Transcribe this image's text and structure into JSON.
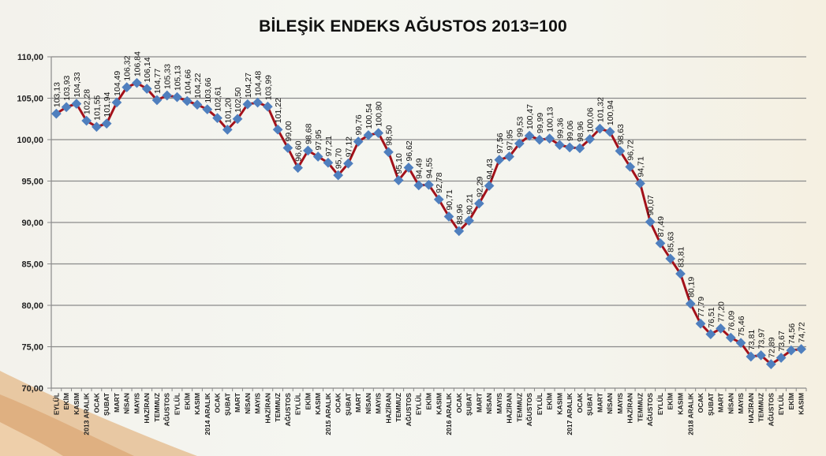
{
  "title": "BİLEŞİK ENDEKS AĞUSTOS 2013=100",
  "colors": {
    "line": "#a3111a",
    "marker": "#4f7fbe",
    "grid": "#8a8a8a",
    "axis": "#8a8a8a",
    "text": "#111111"
  },
  "chart_data": {
    "type": "line",
    "title": "BİLEŞİK ENDEKS AĞUSTOS 2013=100",
    "xlabel": "",
    "ylabel": "",
    "ylim": [
      70,
      110
    ],
    "yticks": [
      "70,00",
      "75,00",
      "80,00",
      "85,00",
      "90,00",
      "95,00",
      "100,00",
      "105,00",
      "110,00"
    ],
    "grid": true,
    "legend": null,
    "categories": [
      "EYLÜL",
      "EKİM",
      "KASIM",
      "2013 ARALIK",
      "OCAK",
      "ŞUBAT",
      "MART",
      "NİSAN",
      "MAYIS",
      "HAZİRAN",
      "TEMMUZ",
      "AĞUSTOS",
      "EYLÜL",
      "EKİM",
      "KASIM",
      "2014 ARALIK",
      "OCAK",
      "ŞUBAT",
      "MART",
      "NİSAN",
      "MAYIS",
      "HAZİRAN",
      "TEMMUZ",
      "AĞUSTOS",
      "EYLÜL",
      "EKİM",
      "KASIM",
      "2015 ARALIK",
      "OCAK",
      "ŞUBAT",
      "MART",
      "NİSAN",
      "MAYIS",
      "HAZİRAN",
      "TEMMUZ",
      "AĞUSTOS",
      "EYLÜL",
      "EKİM",
      "KASIM",
      "2016 ARALIK",
      "OCAK",
      "ŞUBAT",
      "MART",
      "NİSAN",
      "MAYIS",
      "HAZİRAN",
      "TEMMUZ",
      "AĞUSTOS",
      "EYLÜL",
      "EKİM",
      "KASIM",
      "2017 ARALIK",
      "OCAK",
      "ŞUBAT",
      "MART",
      "NİSAN",
      "MAYIS",
      "HAZİRAN",
      "TEMMUZ",
      "AĞUSTOS",
      "EYLÜL",
      "EKİM",
      "KASIM",
      "2018 ARALIK",
      "OCAK",
      "ŞUBAT",
      "MART",
      "NİSAN",
      "MAYIS",
      "HAZİRAN",
      "TEMMUZ",
      "AĞUSTOS",
      "EYLÜL",
      "EKİM",
      "KASIM"
    ],
    "series": [
      {
        "name": "Bileşik Endeks",
        "values": [
          103.13,
          103.93,
          104.33,
          102.28,
          101.55,
          101.94,
          104.49,
          106.32,
          106.84,
          106.14,
          104.77,
          105.33,
          105.13,
          104.66,
          104.22,
          103.66,
          102.61,
          101.2,
          102.5,
          104.27,
          104.48,
          103.99,
          101.22,
          99.0,
          96.6,
          98.68,
          97.95,
          97.21,
          95.7,
          97.12,
          99.76,
          100.54,
          100.8,
          98.5,
          95.1,
          96.62,
          94.49,
          94.55,
          92.78,
          90.71,
          88.96,
          90.21,
          92.29,
          94.43,
          97.56,
          97.95,
          99.53,
          100.47,
          99.99,
          100.13,
          99.36,
          99.06,
          98.96,
          100.06,
          101.32,
          100.94,
          98.63,
          96.72,
          94.71,
          90.07,
          87.49,
          85.63,
          83.81,
          80.19,
          77.79,
          76.51,
          77.2,
          76.09,
          75.46,
          73.81,
          73.97,
          72.89,
          73.67,
          74.56,
          74.72
        ],
        "labels": [
          "103,13",
          "103,93",
          "104,33",
          "102,28",
          "101,55",
          "101,94",
          "104,49",
          "106,32",
          "106,84",
          "106,14",
          "104,77",
          "105,33",
          "105,13",
          "104,66",
          "104,22",
          "103,66",
          "102,61",
          "101,20",
          "102,50",
          "104,27",
          "104,48",
          "103,99",
          "101,22",
          "99,00",
          "96,60",
          "98,68",
          "97,95",
          "97,21",
          "95,70",
          "97,12",
          "99,76",
          "100,54",
          "100,80",
          "98,50",
          "95,10",
          "96,62",
          "94,49",
          "94,55",
          "92,78",
          "90,71",
          "88,96",
          "90,21",
          "92,29",
          "94,43",
          "97,56",
          "97,95",
          "99,53",
          "100,47",
          "99,99",
          "100,13",
          "99,36",
          "99,06",
          "98,96",
          "100,06",
          "101,32",
          "100,94",
          "98,63",
          "96,72",
          "94,71",
          "90,07",
          "87,49",
          "85,63",
          "83,81",
          "80,19",
          "77,79",
          "76,51",
          "77,20",
          "76,09",
          "75,46",
          "73,81",
          "73,97",
          "72,89",
          "73,67",
          "74,56",
          "74,72"
        ]
      }
    ]
  }
}
